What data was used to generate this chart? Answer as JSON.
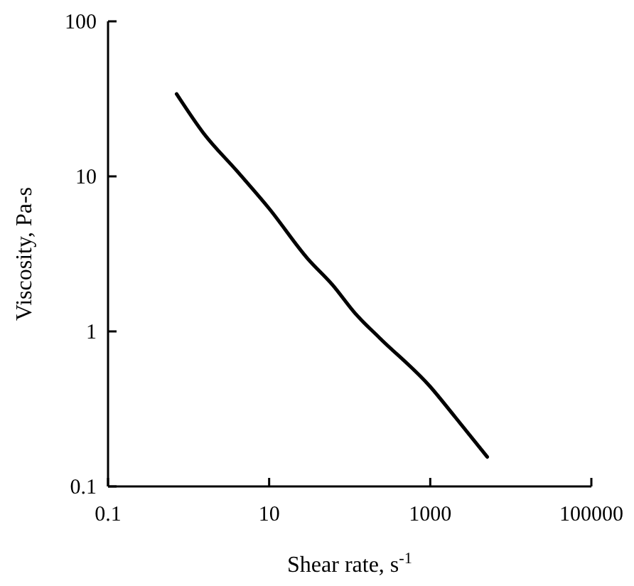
{
  "chart_data": {
    "type": "line",
    "xlabel": "Shear rate, s$^{-1}$",
    "ylabel": "Viscosity, Pa-s",
    "log": "xy",
    "grid": false,
    "marker": "none",
    "line_style": "solid",
    "xlim": [
      0.1,
      100000
    ],
    "xticks": [
      0.1,
      10,
      1000,
      100000
    ],
    "ylim": [
      0.1,
      100
    ],
    "yticks": [
      0.1,
      1,
      10,
      100
    ],
    "series": [
      {
        "color": "#000000",
        "x": [
          0.71,
          1.53,
          4,
          10,
          30,
          61,
          118,
          234,
          1000,
          2040,
          5100
        ],
        "values": [
          34,
          19,
          10.8,
          6.2,
          2.95,
          2.0,
          1.3,
          0.91,
          0.44,
          0.28,
          0.155
        ]
      }
    ]
  }
}
